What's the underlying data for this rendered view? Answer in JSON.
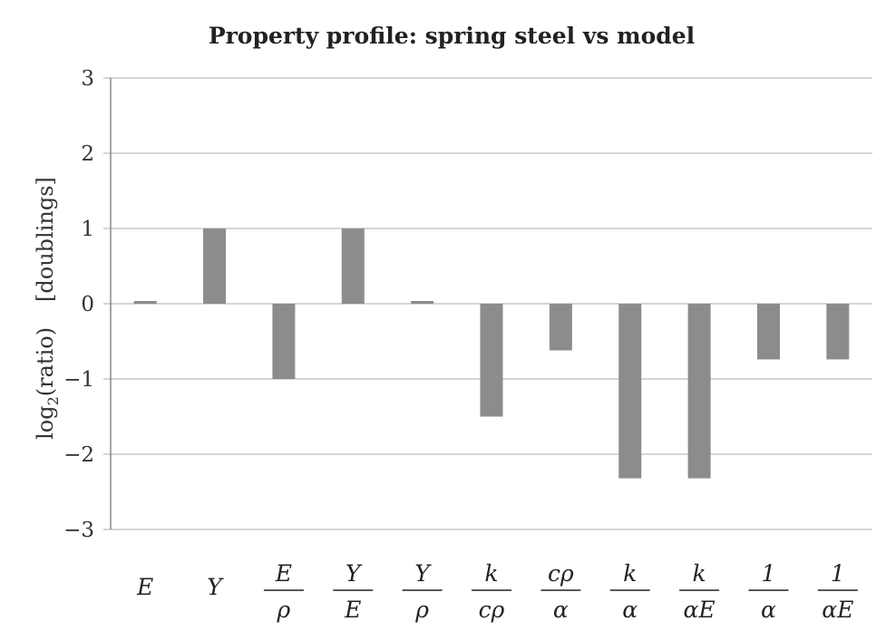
{
  "chart_data": {
    "type": "bar",
    "title": "Property profile: spring steel vs model",
    "ylabel": "log2(ratio)   [doublings]",
    "ylabel_parts": {
      "main": "log",
      "sub": "2",
      "rest": "(ratio)",
      "unit": "[doublings]"
    },
    "ylim": [
      -3,
      3
    ],
    "yticks": [
      3,
      2,
      1,
      0,
      -1,
      -2,
      -3
    ],
    "ytick_labels": [
      "3",
      "2",
      "1",
      "0",
      "−1",
      "−2",
      "−3"
    ],
    "grid": true,
    "categories": [
      {
        "num": "E",
        "den": ""
      },
      {
        "num": "Y",
        "den": ""
      },
      {
        "num": "E",
        "den": "ρ"
      },
      {
        "num": "Y",
        "den": "E"
      },
      {
        "num": "Y",
        "den": "ρ"
      },
      {
        "num": "k",
        "den": "cρ"
      },
      {
        "num": "cρ",
        "den": "α"
      },
      {
        "num": "k",
        "den": "α"
      },
      {
        "num": "k",
        "den": "αE"
      },
      {
        "num": "1",
        "den": "α"
      },
      {
        "num": "1",
        "den": "αE"
      }
    ],
    "values": [
      0.02,
      1.0,
      -1.0,
      1.0,
      0.02,
      -1.5,
      -0.62,
      -2.32,
      -2.32,
      -0.74,
      -0.74
    ],
    "color": "#8c8c8c"
  }
}
